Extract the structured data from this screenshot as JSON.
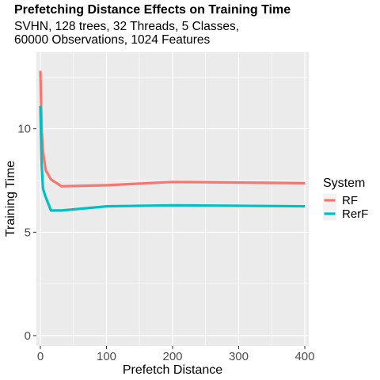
{
  "chart_data": {
    "type": "line",
    "title": "Prefetching Distance Effects on Training Time",
    "subtitle_lines": [
      "SVHN, 128 trees, 32 Threads, 5 Classes,",
      "60000 Observations, 1024 Features"
    ],
    "xlabel": "Prefetch Distance",
    "ylabel": "Training Time",
    "xlim": [
      -6,
      406
    ],
    "ylim": [
      -0.5,
      13.7
    ],
    "xticks": [
      0,
      100,
      200,
      300,
      400
    ],
    "yticks": [
      0,
      5,
      10
    ],
    "grid": true,
    "legend_title": "System",
    "legend_position": "right",
    "series": [
      {
        "name": "RF",
        "color": "#F8766D",
        "x": [
          0,
          2,
          4,
          8,
          16,
          32,
          100,
          200,
          400
        ],
        "y": [
          12.8,
          9.9,
          8.9,
          8.0,
          7.55,
          7.22,
          7.27,
          7.43,
          7.37
        ]
      },
      {
        "name": "RerF",
        "color": "#00BFC4",
        "x": [
          0,
          2,
          4,
          8,
          16,
          32,
          100,
          200,
          400
        ],
        "y": [
          11.1,
          8.2,
          7.1,
          6.7,
          6.05,
          6.05,
          6.25,
          6.3,
          6.25
        ]
      }
    ]
  }
}
